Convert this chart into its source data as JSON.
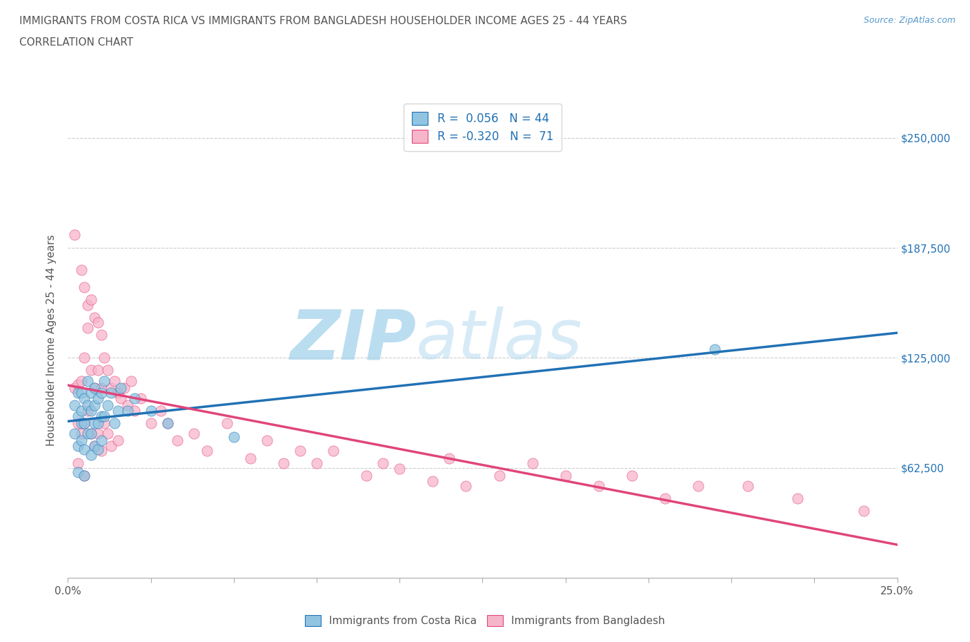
{
  "title_line1": "IMMIGRANTS FROM COSTA RICA VS IMMIGRANTS FROM BANGLADESH HOUSEHOLDER INCOME AGES 25 - 44 YEARS",
  "title_line2": "CORRELATION CHART",
  "source_text": "Source: ZipAtlas.com",
  "ylabel": "Householder Income Ages 25 - 44 years",
  "xlim": [
    0.0,
    0.25
  ],
  "ylim": [
    0,
    270000
  ],
  "xticks": [
    0.0,
    0.025,
    0.05,
    0.075,
    0.1,
    0.125,
    0.15,
    0.175,
    0.2,
    0.225,
    0.25
  ],
  "xticklabels": [
    "0.0%",
    "",
    "",
    "",
    "",
    "",
    "",
    "",
    "",
    "",
    "25.0%"
  ],
  "ytick_positions": [
    0,
    62500,
    125000,
    187500,
    250000
  ],
  "ytick_labels": [
    "",
    "$62,500",
    "$125,000",
    "$187,500",
    "$250,000"
  ],
  "watermark_zip": "ZIP",
  "watermark_atlas": "atlas",
  "legend_text1": "R =  0.056   N = 44",
  "legend_text2": "R = -0.320   N =  71",
  "color_costa_rica": "#90c4e0",
  "color_bangladesh": "#f7b5ca",
  "color_line_costa_rica": "#2171b5",
  "color_line_bangladesh": "#e0457b",
  "color_title": "#555555",
  "color_source": "#5599cc",
  "color_ytick_labels": "#2171b5",
  "color_xtick_labels": "#555555",
  "grid_color": "#cccccc",
  "background_color": "#ffffff",
  "watermark_color": "#d0e8f5",
  "costa_rica_x": [
    0.002,
    0.002,
    0.003,
    0.003,
    0.003,
    0.003,
    0.004,
    0.004,
    0.004,
    0.004,
    0.005,
    0.005,
    0.005,
    0.005,
    0.006,
    0.006,
    0.006,
    0.007,
    0.007,
    0.007,
    0.007,
    0.008,
    0.008,
    0.008,
    0.008,
    0.009,
    0.009,
    0.009,
    0.01,
    0.01,
    0.01,
    0.011,
    0.011,
    0.012,
    0.013,
    0.014,
    0.015,
    0.016,
    0.018,
    0.02,
    0.025,
    0.03,
    0.05,
    0.195
  ],
  "costa_rica_y": [
    98000,
    82000,
    105000,
    92000,
    75000,
    60000,
    95000,
    88000,
    105000,
    78000,
    102000,
    88000,
    73000,
    58000,
    98000,
    112000,
    82000,
    105000,
    95000,
    82000,
    70000,
    108000,
    98000,
    88000,
    75000,
    102000,
    88000,
    73000,
    105000,
    92000,
    78000,
    112000,
    92000,
    98000,
    105000,
    88000,
    95000,
    108000,
    95000,
    102000,
    95000,
    88000,
    80000,
    130000
  ],
  "bangladesh_x": [
    0.002,
    0.002,
    0.003,
    0.003,
    0.003,
    0.004,
    0.004,
    0.004,
    0.005,
    0.005,
    0.005,
    0.005,
    0.006,
    0.006,
    0.006,
    0.007,
    0.007,
    0.007,
    0.008,
    0.008,
    0.008,
    0.009,
    0.009,
    0.009,
    0.01,
    0.01,
    0.01,
    0.011,
    0.011,
    0.012,
    0.012,
    0.013,
    0.013,
    0.014,
    0.015,
    0.015,
    0.016,
    0.017,
    0.018,
    0.019,
    0.02,
    0.022,
    0.025,
    0.028,
    0.03,
    0.033,
    0.038,
    0.042,
    0.048,
    0.055,
    0.06,
    0.065,
    0.07,
    0.075,
    0.08,
    0.09,
    0.095,
    0.1,
    0.11,
    0.115,
    0.12,
    0.13,
    0.14,
    0.15,
    0.16,
    0.17,
    0.18,
    0.19,
    0.205,
    0.22,
    0.24
  ],
  "bangladesh_y": [
    108000,
    195000,
    110000,
    88000,
    65000,
    175000,
    112000,
    82000,
    165000,
    125000,
    88000,
    58000,
    155000,
    142000,
    95000,
    158000,
    118000,
    82000,
    148000,
    108000,
    75000,
    145000,
    118000,
    82000,
    138000,
    108000,
    72000,
    125000,
    88000,
    118000,
    82000,
    108000,
    75000,
    112000,
    105000,
    78000,
    102000,
    108000,
    98000,
    112000,
    95000,
    102000,
    88000,
    95000,
    88000,
    78000,
    82000,
    72000,
    88000,
    68000,
    78000,
    65000,
    72000,
    65000,
    72000,
    58000,
    65000,
    62000,
    55000,
    68000,
    52000,
    58000,
    65000,
    58000,
    52000,
    58000,
    45000,
    52000,
    52000,
    45000,
    38000
  ]
}
